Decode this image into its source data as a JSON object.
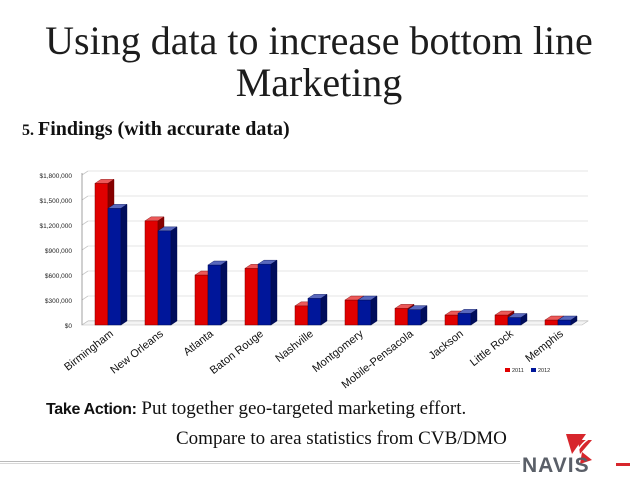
{
  "slide": {
    "title_line1": "Using data to increase bottom line",
    "title_line2": "Marketing",
    "subhead_num": "5.",
    "subhead_text": "Findings (with accurate data)",
    "action_label": "Take Action:",
    "action_text": " Put together geo-targeted marketing effort.",
    "compare_text": "Compare to area statistics from CVB/DMO",
    "logo_text": "NAVIS"
  },
  "colors": {
    "series_2011": "#e00000",
    "series_2012": "#00169a",
    "grid": "#dddddd"
  },
  "chart_data": {
    "type": "bar",
    "categories": [
      "Birmingham",
      "New Orleans",
      "Atlanta",
      "Baton Rouge",
      "Nashville",
      "Montgomery",
      "Mobile-Pensacola",
      "Jackson",
      "Little Rock",
      "Memphis"
    ],
    "series": [
      {
        "name": "2011",
        "values": [
          1700000,
          1250000,
          600000,
          680000,
          230000,
          300000,
          200000,
          120000,
          120000,
          60000
        ]
      },
      {
        "name": "2012",
        "values": [
          1400000,
          1130000,
          720000,
          730000,
          320000,
          300000,
          185000,
          140000,
          90000,
          60000
        ]
      }
    ],
    "yticks": [
      "$0",
      "$300,000",
      "$600,000",
      "$900,000",
      "$1,200,000",
      "$1,500,000",
      "$1,800,000"
    ],
    "ylim": [
      0,
      1800000
    ],
    "grid": true,
    "legend": "bottom-right",
    "title": "",
    "xlabel": "",
    "ylabel": ""
  }
}
